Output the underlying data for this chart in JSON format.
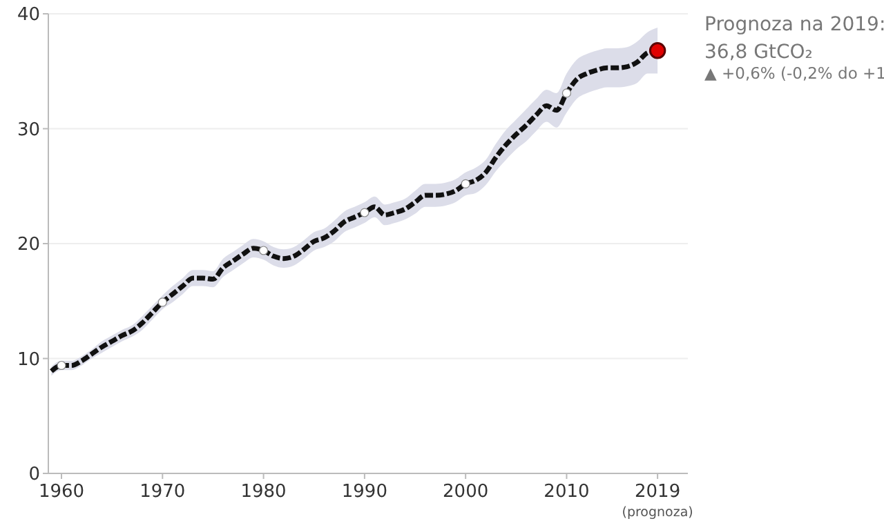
{
  "chart_data": {
    "type": "line",
    "x": [
      1959,
      1960,
      1961,
      1962,
      1963,
      1964,
      1965,
      1966,
      1967,
      1968,
      1969,
      1970,
      1971,
      1972,
      1973,
      1974,
      1975,
      1976,
      1977,
      1978,
      1979,
      1980,
      1981,
      1982,
      1983,
      1984,
      1985,
      1986,
      1987,
      1988,
      1989,
      1990,
      1991,
      1992,
      1993,
      1994,
      1995,
      1996,
      1997,
      1998,
      1999,
      2000,
      2001,
      2002,
      2003,
      2004,
      2005,
      2006,
      2007,
      2008,
      2009,
      2010,
      2011,
      2012,
      2013,
      2014,
      2015,
      2016,
      2017,
      2018,
      2019
    ],
    "series": [
      {
        "color": "#111111",
        "line_style": "dashed",
        "values": [
          8.9,
          9.4,
          9.4,
          9.8,
          10.4,
          11.0,
          11.5,
          12.0,
          12.4,
          13.1,
          14.0,
          14.9,
          15.6,
          16.3,
          17.0,
          17.0,
          16.9,
          17.9,
          18.5,
          19.1,
          19.6,
          19.4,
          18.9,
          18.7,
          18.9,
          19.5,
          20.2,
          20.5,
          21.1,
          21.9,
          22.3,
          22.7,
          23.2,
          22.5,
          22.7,
          23.0,
          23.6,
          24.2,
          24.2,
          24.3,
          24.6,
          25.2,
          25.5,
          26.2,
          27.5,
          28.6,
          29.5,
          30.3,
          31.2,
          32.0,
          31.6,
          33.1,
          34.3,
          34.8,
          35.1,
          35.3,
          35.3,
          35.4,
          35.8,
          36.6,
          36.8
        ],
        "lower": [
          8.5,
          9.0,
          9.0,
          9.4,
          10.0,
          10.5,
          11.0,
          11.5,
          11.9,
          12.5,
          13.4,
          14.3,
          14.9,
          15.6,
          16.3,
          16.3,
          16.2,
          17.1,
          17.7,
          18.3,
          18.8,
          18.6,
          18.1,
          17.9,
          18.1,
          18.7,
          19.4,
          19.7,
          20.2,
          21.0,
          21.4,
          21.8,
          22.3,
          21.6,
          21.8,
          22.1,
          22.6,
          23.2,
          23.2,
          23.3,
          23.6,
          24.2,
          24.4,
          25.1,
          26.3,
          27.3,
          28.2,
          28.9,
          29.8,
          30.6,
          30.1,
          31.4,
          32.6,
          33.1,
          33.4,
          33.6,
          33.6,
          33.7,
          34.0,
          34.8,
          34.8
        ],
        "upper": [
          9.3,
          9.8,
          9.8,
          10.2,
          10.8,
          11.5,
          12.0,
          12.5,
          12.9,
          13.7,
          14.6,
          15.5,
          16.3,
          17.0,
          17.7,
          17.7,
          17.6,
          18.7,
          19.3,
          19.9,
          20.4,
          20.2,
          19.7,
          19.5,
          19.7,
          20.3,
          21.0,
          21.3,
          22.0,
          22.8,
          23.2,
          23.6,
          24.1,
          23.4,
          23.6,
          23.9,
          24.6,
          25.2,
          25.2,
          25.3,
          25.6,
          26.2,
          26.6,
          27.3,
          28.7,
          29.9,
          30.8,
          31.7,
          32.6,
          33.4,
          33.1,
          34.8,
          36.0,
          36.5,
          36.8,
          37.0,
          37.0,
          37.1,
          37.6,
          38.4,
          38.8
        ]
      },
      {
        "type": "scatter",
        "marker": "circle",
        "color": "#ffffff",
        "x": [
          1960,
          1970,
          1980,
          1990,
          2000,
          2010
        ],
        "values": [
          9.4,
          14.9,
          19.4,
          22.7,
          25.2,
          33.1
        ]
      },
      {
        "type": "scatter",
        "marker": "circle",
        "color": "#e00000",
        "x": [
          2019
        ],
        "values": [
          36.8
        ]
      }
    ],
    "xlim": [
      1958.7,
      2022
    ],
    "ylim": [
      0,
      40
    ],
    "xticks": [
      1960,
      1970,
      1980,
      1990,
      2000,
      2010,
      {
        "value": 2019,
        "label": "2019\n(prognoza)"
      }
    ],
    "yticks": [
      0,
      10,
      20,
      30,
      40
    ],
    "grid": "y",
    "annotations": [
      "Prognoza na 2019:",
      "36,8 GtCO₂",
      "▲ +0,6% (-0,2% do +1"
    ]
  }
}
